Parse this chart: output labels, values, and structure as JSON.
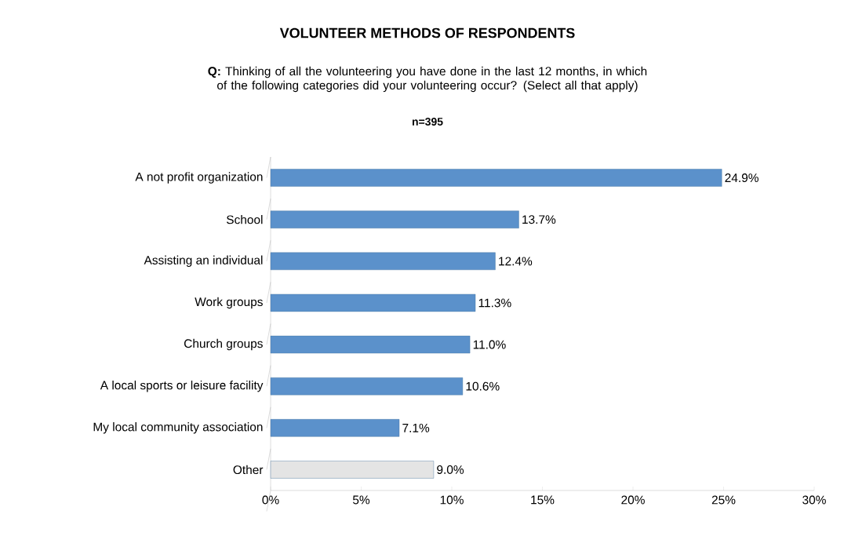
{
  "chart_data": {
    "type": "bar",
    "orientation": "horizontal",
    "title": "VOLUNTEER METHODS OF RESPONDENTS",
    "subtitle": "**Q:** Thinking of all the volunteering you have done in the last 12 months, in which of the following categories did your volunteering occur? (Select all that apply)",
    "annotations": [
      "n=395"
    ],
    "categories": [
      "A not profit organization",
      "School",
      "Assisting an individual",
      "Work groups",
      "Church groups",
      "A local sports or leisure facility",
      "My local community association",
      "Other"
    ],
    "values": [
      24.9,
      13.7,
      12.4,
      11.3,
      11.0,
      10.6,
      7.1,
      9.0
    ],
    "value_labels": [
      "24.9%",
      "13.7%",
      "12.4%",
      "11.3%",
      "11.0%",
      "10.6%",
      "7.1%",
      "9.0%"
    ],
    "colors": [
      "#5b91cb",
      "#5b91cb",
      "#5b91cb",
      "#5b91cb",
      "#5b91cb",
      "#5b91cb",
      "#5b91cb",
      "#e4e4e4"
    ],
    "xlim": [
      0,
      30
    ],
    "xticks": [
      {
        "value": 0,
        "label": "0%"
      },
      {
        "value": 5,
        "label": "5%"
      },
      {
        "value": 10,
        "label": "10%"
      },
      {
        "value": 15,
        "label": "15%"
      },
      {
        "value": 20,
        "label": "20%"
      },
      {
        "value": 25,
        "label": "25%"
      },
      {
        "value": 30,
        "label": "30%"
      }
    ]
  }
}
